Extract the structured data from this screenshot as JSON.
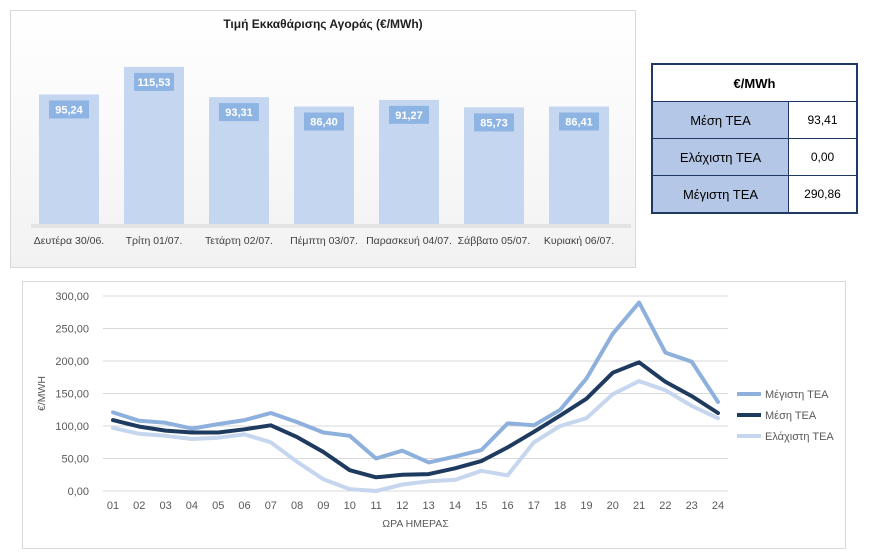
{
  "bar_chart": {
    "title": "Τιμή Εκκαθάρισης Αγοράς (€/MWh)"
  },
  "summary": {
    "header": "€/MWh",
    "rows": [
      {
        "label": "Μέση ΤΕΑ",
        "value": "93,41"
      },
      {
        "label": "Ελάχιστη ΤΕΑ",
        "value": "0,00"
      },
      {
        "label": "Μέγιστη ΤΕΑ",
        "value": "290,86"
      }
    ]
  },
  "colors": {
    "bar_fill": "#c5d6f0",
    "bar_label_bg": "#8eb4e3",
    "max_line": "#8eb0dc",
    "avg_line": "#1f3a5f",
    "min_line": "#c5d6ee"
  },
  "chart_data": [
    {
      "type": "bar",
      "title": "Τιμή Εκκαθάρισης Αγοράς (€/MWh)",
      "categories": [
        "Δευτέρα 30/06.",
        "Τρίτη 01/07.",
        "Τετάρτη 02/07.",
        "Πέμπτη 03/07.",
        "Παρασκευή 04/07.",
        "Σάββατο 05/07.",
        "Κυριακή 06/07."
      ],
      "values": [
        95.24,
        115.53,
        93.31,
        86.4,
        91.27,
        85.73,
        86.41
      ],
      "labels": [
        "95,24",
        "115,53",
        "93,31",
        "86,40",
        "91,27",
        "85,73",
        "86,41"
      ],
      "ylim": [
        0,
        125
      ]
    },
    {
      "type": "line",
      "title": "",
      "xlabel": "ΩΡΑ ΗΜΕΡΑΣ",
      "ylabel": "€/MWH",
      "x": [
        "01",
        "02",
        "03",
        "04",
        "05",
        "06",
        "07",
        "08",
        "09",
        "10",
        "11",
        "12",
        "13",
        "14",
        "15",
        "16",
        "17",
        "18",
        "19",
        "20",
        "21",
        "22",
        "23",
        "24"
      ],
      "ylim": [
        0,
        300
      ],
      "yticks": [
        "0,00",
        "50,00",
        "100,00",
        "150,00",
        "200,00",
        "250,00",
        "300,00"
      ],
      "legend": "right",
      "grid": true,
      "series": [
        {
          "name": "Μέγιστη ΤΕΑ",
          "values": [
            121,
            108,
            105,
            96,
            103,
            109,
            120,
            106,
            90,
            85,
            50,
            62,
            44,
            53,
            63,
            104,
            101,
            125,
            173,
            242,
            290,
            213,
            199,
            137
          ]
        },
        {
          "name": "Μέση ΤΕΑ",
          "values": [
            109,
            99,
            93,
            90,
            90,
            95,
            101,
            83,
            60,
            32,
            21,
            25,
            26,
            35,
            46,
            67,
            91,
            116,
            142,
            182,
            198,
            168,
            146,
            120
          ]
        },
        {
          "name": "Ελάχιστη ΤΕΑ",
          "values": [
            97,
            88,
            85,
            80,
            82,
            87,
            75,
            45,
            18,
            3,
            0,
            10,
            15,
            17,
            31,
            24,
            75,
            100,
            112,
            149,
            169,
            155,
            131,
            112
          ]
        }
      ]
    }
  ]
}
